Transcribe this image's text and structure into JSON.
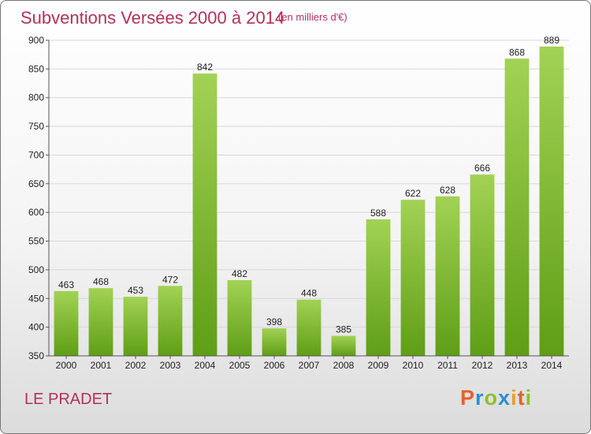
{
  "header": {
    "title": "Subventions Versées 2000 à 2014",
    "subtitle": "(en milliers d'€)"
  },
  "footer": {
    "commune": "LE PRADET",
    "logo": "Proxiti"
  },
  "colors": {
    "bar_top": "#a2d255",
    "bar_bottom": "#5f9e16",
    "title": "#b3305a"
  },
  "chart_data": {
    "type": "bar",
    "title": "Subventions Versées 2000 à 2014",
    "xlabel": "",
    "ylabel": "",
    "ylim": [
      350,
      900
    ],
    "yticks": [
      350,
      400,
      450,
      500,
      550,
      600,
      650,
      700,
      750,
      800,
      850,
      900
    ],
    "grid": true,
    "categories": [
      "2000",
      "2001",
      "2002",
      "2003",
      "2004",
      "2005",
      "2006",
      "2007",
      "2008",
      "2009",
      "2010",
      "2011",
      "2012",
      "2013",
      "2014"
    ],
    "values": [
      463,
      468,
      453,
      472,
      842,
      482,
      398,
      448,
      385,
      588,
      622,
      628,
      666,
      868,
      889
    ]
  }
}
